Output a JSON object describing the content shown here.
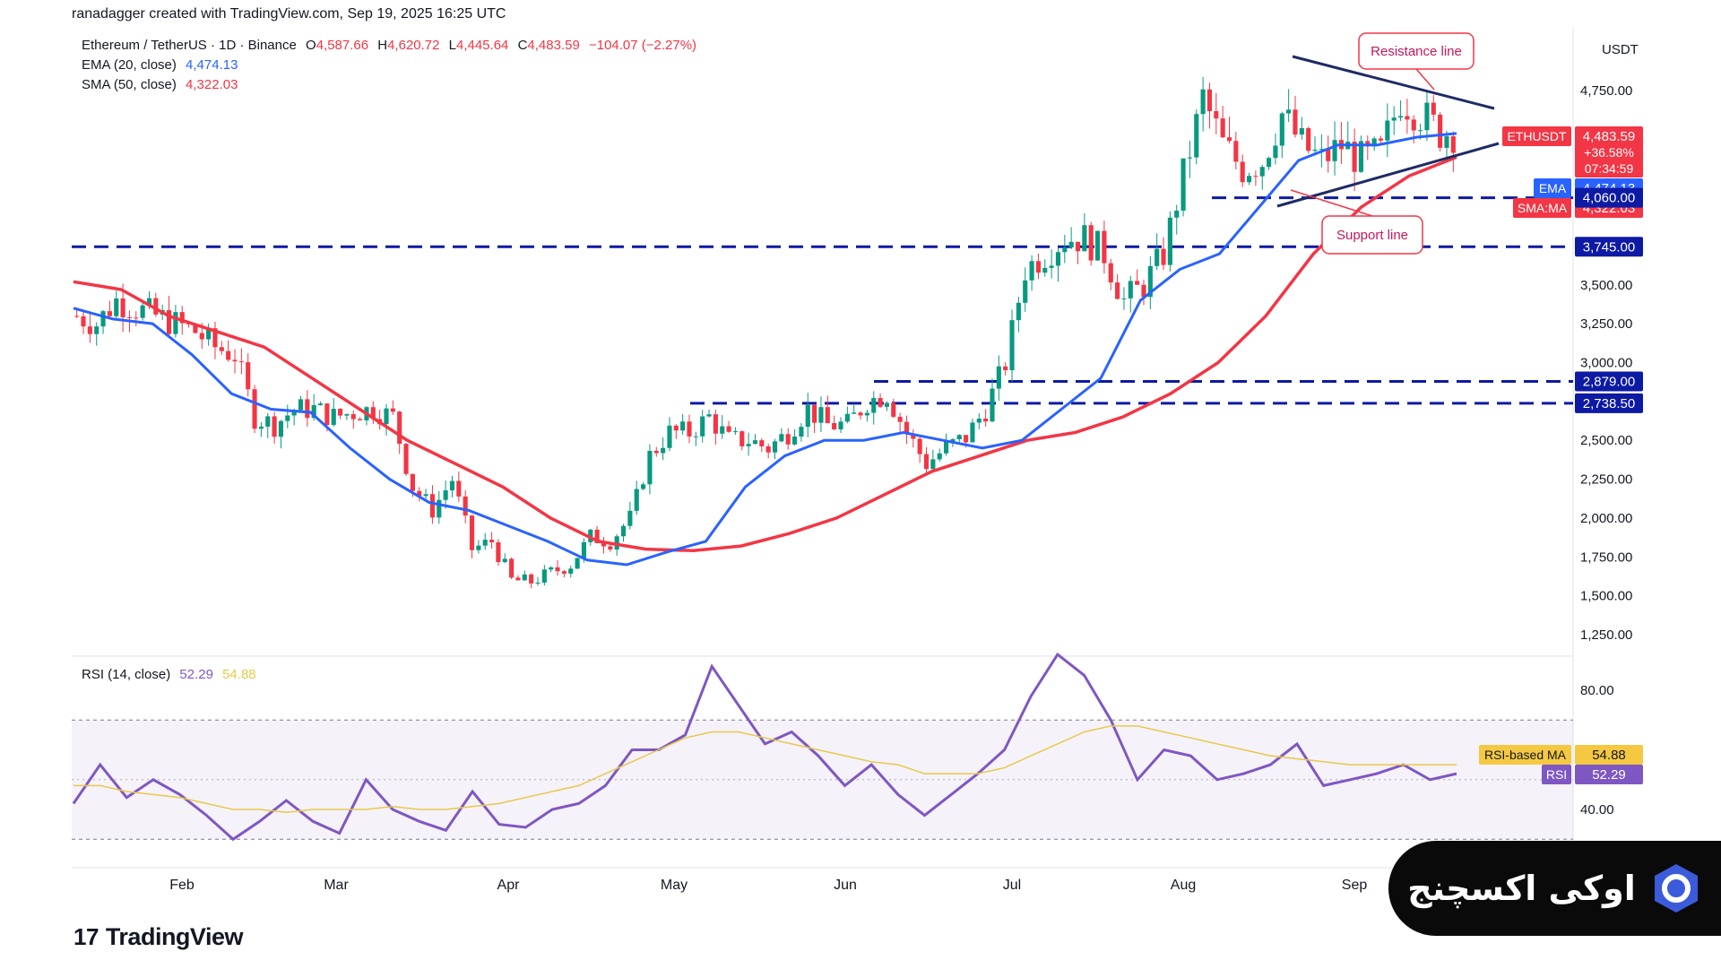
{
  "header": {
    "credit": "ranadagger created with TradingView.com, Sep 19, 2025 16:25 UTC",
    "symbol": "Ethereum / TetherUS · 1D · Binance",
    "ohlc": {
      "o_label": "O",
      "o": "4,587.66",
      "h_label": "H",
      "h": "4,620.72",
      "l_label": "L",
      "l": "4,445.64",
      "c_label": "C",
      "c": "4,483.59",
      "change": "−104.07 (−2.27%)"
    },
    "ema_label": "EMA (20, close)",
    "ema_value": "4,474.13",
    "sma_label": "SMA (50, close)",
    "sma_value": "4,322.03"
  },
  "rsi_legend": {
    "label": "RSI (14, close)",
    "rsi": "52.29",
    "ma": "54.88"
  },
  "colors": {
    "up": "#089981",
    "down": "#f23645",
    "ema": "#2962ff",
    "sma": "#f23645",
    "level": "#0d1aa3",
    "trend": "#1e2a66",
    "rsi": "#7e57c2",
    "rsi_ma": "#e8c94a"
  },
  "annotations": {
    "resistance": "Resistance line",
    "support": "Support line"
  },
  "chart_data": {
    "type": "candlestick",
    "symbol": "ETHUSDT",
    "y_unit": "USDT",
    "y_ticks": [
      "4,750.00",
      "3,500.00",
      "3,250.00",
      "3,000.00",
      "2,500.00",
      "2,250.00",
      "2,000.00",
      "1,750.00",
      "1,500.00",
      "1,250.00"
    ],
    "y_tick_values": [
      4750,
      3500,
      3250,
      3000,
      2500,
      2250,
      2000,
      1750,
      1500,
      1250
    ],
    "x_ticks": [
      "Feb",
      "Mar",
      "Apr",
      "May",
      "Jun",
      "Jul",
      "Aug",
      "Sep"
    ],
    "levels": [
      {
        "value": 4060,
        "label": "4,060.00"
      },
      {
        "value": 3745,
        "label": "3,745.00"
      },
      {
        "value": 2879,
        "label": "2,879.00"
      },
      {
        "value": 2738.5,
        "label": "2,738.50"
      }
    ],
    "price_tags": {
      "symbol": "ETHUSDT",
      "price": "4,483.59",
      "pct": "+36.58%",
      "countdown": "07:34:59",
      "ema_tag": "EMA",
      "ema": "4,474.13",
      "sma_tag": "SMA:MA",
      "sma": "4,322.03"
    },
    "close_series": [
      3300,
      3250,
      3400,
      3350,
      3300,
      3250,
      3200,
      3100,
      3050,
      2650,
      2600,
      2700,
      2700,
      2650,
      2680,
      2700,
      2650,
      2200,
      2050,
      2250,
      1800,
      1850,
      1600,
      1590,
      1650,
      1700,
      1880,
      1850,
      2000,
      2400,
      2550,
      2550,
      2650,
      2500,
      2500,
      2450,
      2550,
      2700,
      2600,
      2600,
      2750,
      2800,
      2550,
      2350,
      2450,
      2520,
      2700,
      3000,
      3600,
      3700,
      3800,
      3800,
      3700,
      3400,
      3500,
      3700,
      4200,
      4700,
      4400,
      4250,
      4300,
      4600,
      4400,
      4300,
      4400,
      4300,
      4350,
      4700,
      4600,
      4483
    ],
    "ema20_points": [
      3350,
      3280,
      3250,
      3050,
      2800,
      2700,
      2680,
      2450,
      2250,
      2100,
      2050,
      1950,
      1850,
      1730,
      1700,
      1780,
      1850,
      2200,
      2400,
      2500,
      2500,
      2550,
      2500,
      2450,
      2500,
      2700,
      2900,
      3400,
      3600,
      3700,
      4000,
      4300,
      4400,
      4400,
      4450,
      4474
    ],
    "sma50_points": [
      3520,
      3470,
      3300,
      3200,
      3100,
      2900,
      2700,
      2500,
      2350,
      2200,
      2000,
      1850,
      1800,
      1790,
      1820,
      1900,
      2000,
      2150,
      2300,
      2400,
      2500,
      2550,
      2650,
      2800,
      3000,
      3300,
      3700,
      4000,
      4200,
      4322
    ],
    "rsi": {
      "levels": [
        70,
        30
      ],
      "ticks": [
        "80.00",
        "40.00"
      ],
      "tick_values": [
        80,
        40
      ],
      "rsi_tag": "RSI",
      "ma_tag": "RSI-based MA",
      "rsi_value": "52.29",
      "ma_value": "54.88"
    }
  },
  "branding": {
    "logo": "TradingView",
    "exchange": "اوکی اکسچنج"
  }
}
